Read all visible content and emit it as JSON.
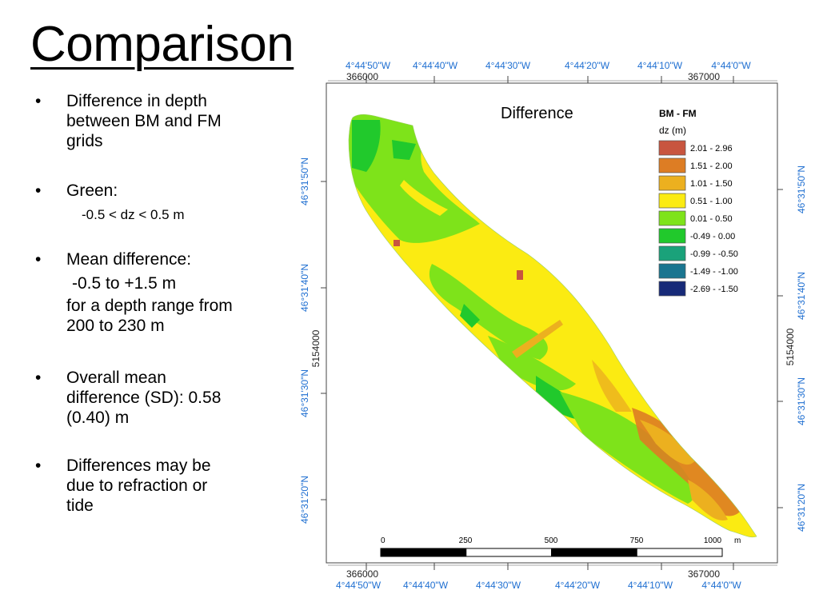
{
  "title": "Comparison",
  "bullets": [
    {
      "marker": "•",
      "lines": [
        "Difference in depth",
        "between BM and FM",
        "grids"
      ]
    },
    {
      "marker": "•",
      "lines": [
        "Green:"
      ],
      "sub": [
        "-0.5 < dz < 0.5 m"
      ]
    },
    {
      "marker": "•",
      "lines": [
        "Mean difference:"
      ],
      "sub": [
        "-0.5 to +1.5 m",
        "for a depth range from",
        "200 to 230 m"
      ]
    },
    {
      "marker": "•",
      "lines": [
        "Overall mean",
        "difference (SD):  0.58",
        "(0.40) m"
      ]
    },
    {
      "marker": "•",
      "lines": [
        "Differences may be",
        "due to refraction or",
        "tide"
      ]
    }
  ],
  "map": {
    "label": "Difference",
    "top_lon_labels": [
      "4°44'50\"W",
      "4°44'40\"W",
      "4°44'30\"W",
      "4°44'20\"W",
      "4°44'10\"W",
      "4°44'0\"W"
    ],
    "bottom_lon_labels": [
      "4°44'50\"W",
      "4°44'40\"W",
      "4°44'30\"W",
      "4°44'20\"W",
      "4°44'10\"W",
      "4°44'0\"W"
    ],
    "easting_labels": [
      "366000",
      "367000"
    ],
    "lat_labels": [
      "46°31'50\"N",
      "46°31'40\"N",
      "46°31'30\"N",
      "46°31'20\"N"
    ],
    "northing_label": "5154000",
    "legend": {
      "title": "BM - FM",
      "subtitle": "dz (m)",
      "classes": [
        {
          "label": "2.01 -  2.96",
          "color": "#c8553f"
        },
        {
          "label": "1.51 -  2.00",
          "color": "#dd7d24"
        },
        {
          "label": "1.01 -  1.50",
          "color": "#ecb01f"
        },
        {
          "label": "0.51 -  1.00",
          "color": "#fbeb12"
        },
        {
          "label": "0.01 -  0.50",
          "color": "#7ee31a"
        },
        {
          "label": "-0.49 -  0.00",
          "color": "#21c92c"
        },
        {
          "label": "-0.99 - -0.50",
          "color": "#1aa27a"
        },
        {
          "label": "-1.49 - -1.00",
          "color": "#1a7590"
        },
        {
          "label": "-2.69 - -1.50",
          "color": "#172a78"
        }
      ]
    },
    "scalebar": {
      "ticks": [
        "0",
        "250",
        "500",
        "750",
        "1000"
      ],
      "unit": "m"
    }
  }
}
